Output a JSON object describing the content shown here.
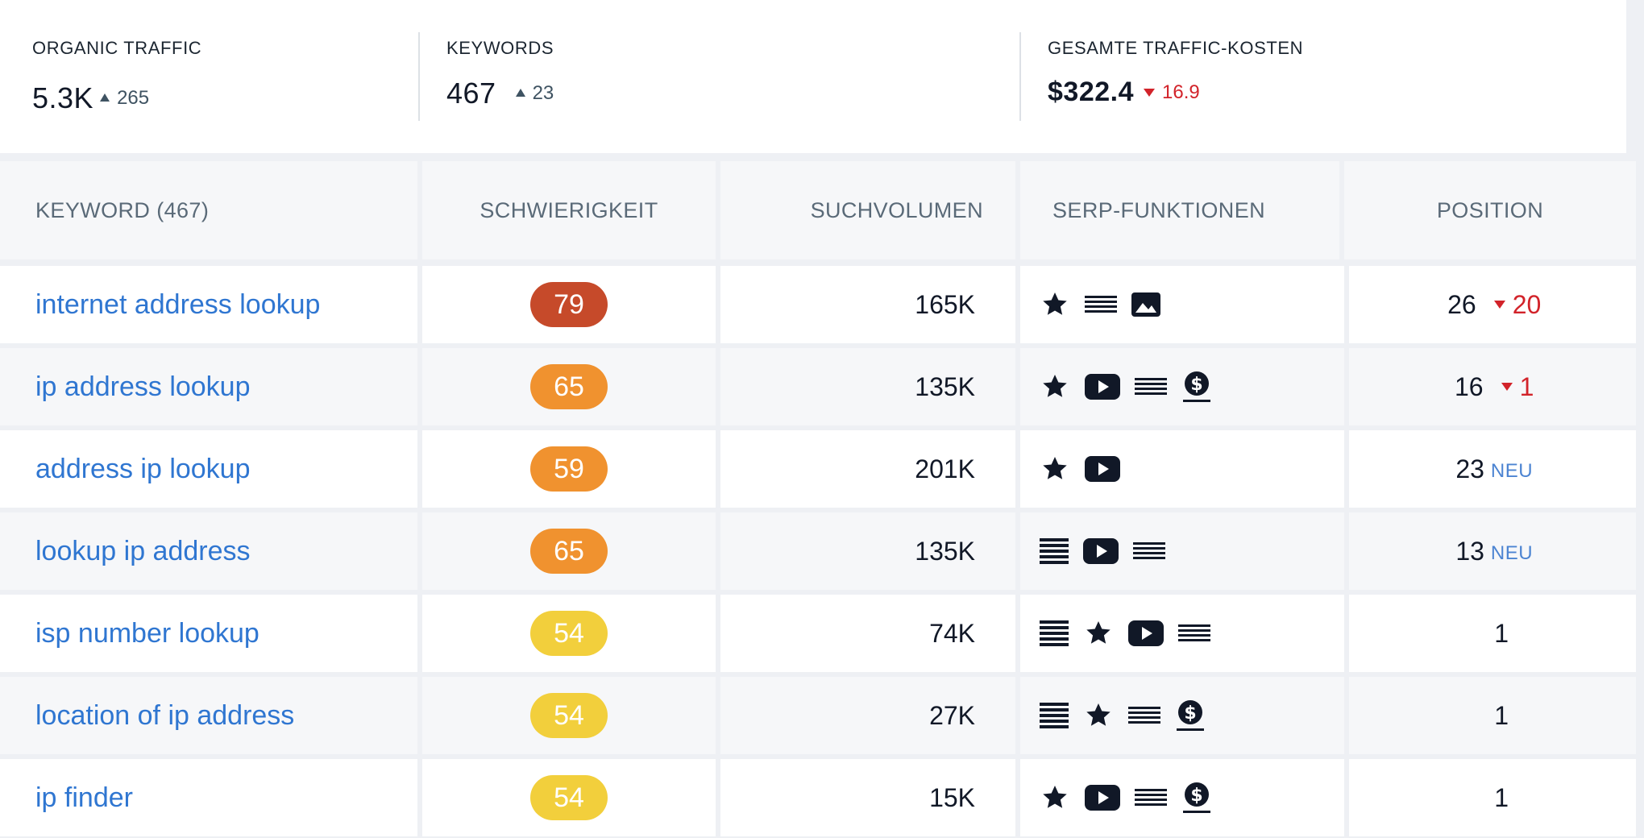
{
  "summary": {
    "organic_traffic": {
      "label": "ORGANIC TRAFFIC",
      "value": "5.3K",
      "delta": "265",
      "direction": "up"
    },
    "keywords": {
      "label": "KEYWORDS",
      "value": "467",
      "delta": "23",
      "direction": "up"
    },
    "traffic_cost": {
      "label": "GESAMTE TRAFFIC-KOSTEN",
      "value": "$322.4",
      "delta": "16.9",
      "direction": "down"
    }
  },
  "table": {
    "headers": {
      "keyword": "KEYWORD (467)",
      "difficulty": "SCHWIERIGKEIT",
      "volume": "SUCHVOLUMEN",
      "serp": "SERP-FUNKTIONEN",
      "position": "POSITION"
    },
    "rows": [
      {
        "keyword": "internet address lookup",
        "difficulty": "79",
        "difficulty_color": "#c64a2a",
        "volume": "165K",
        "serp": [
          "star-icon",
          "lines-icon",
          "image-icon"
        ],
        "position": "26",
        "position_delta": "20",
        "position_dir": "down",
        "new_label": ""
      },
      {
        "keyword": "ip address lookup",
        "difficulty": "65",
        "difficulty_color": "#f0922f",
        "volume": "135K",
        "serp": [
          "star-icon",
          "video-icon",
          "lines-icon",
          "dollar-icon"
        ],
        "position": "16",
        "position_delta": "1",
        "position_dir": "down",
        "new_label": ""
      },
      {
        "keyword": "address ip lookup",
        "difficulty": "59",
        "difficulty_color": "#f0922f",
        "volume": "201K",
        "serp": [
          "star-icon",
          "video-icon"
        ],
        "position": "23",
        "position_delta": "",
        "position_dir": "",
        "new_label": "NEU"
      },
      {
        "keyword": "lookup ip address",
        "difficulty": "65",
        "difficulty_color": "#f0922f",
        "volume": "135K",
        "serp": [
          "list-icon",
          "video-icon",
          "lines-icon"
        ],
        "position": "13",
        "position_delta": "",
        "position_dir": "",
        "new_label": "NEU"
      },
      {
        "keyword": "isp number lookup",
        "difficulty": "54",
        "difficulty_color": "#f2cf3c",
        "volume": "74K",
        "serp": [
          "list-icon",
          "star-icon",
          "video-icon",
          "lines-icon"
        ],
        "position": "1",
        "position_delta": "",
        "position_dir": "",
        "new_label": ""
      },
      {
        "keyword": "location of ip address",
        "difficulty": "54",
        "difficulty_color": "#f2cf3c",
        "volume": "27K",
        "serp": [
          "list-icon",
          "star-icon",
          "lines-icon",
          "dollar-icon"
        ],
        "position": "1",
        "position_delta": "",
        "position_dir": "",
        "new_label": ""
      },
      {
        "keyword": "ip finder",
        "difficulty": "54",
        "difficulty_color": "#f2cf3c",
        "volume": "15K",
        "serp": [
          "star-icon",
          "video-icon",
          "lines-icon",
          "dollar-icon"
        ],
        "position": "1",
        "position_delta": "",
        "position_dir": "",
        "new_label": ""
      }
    ]
  }
}
